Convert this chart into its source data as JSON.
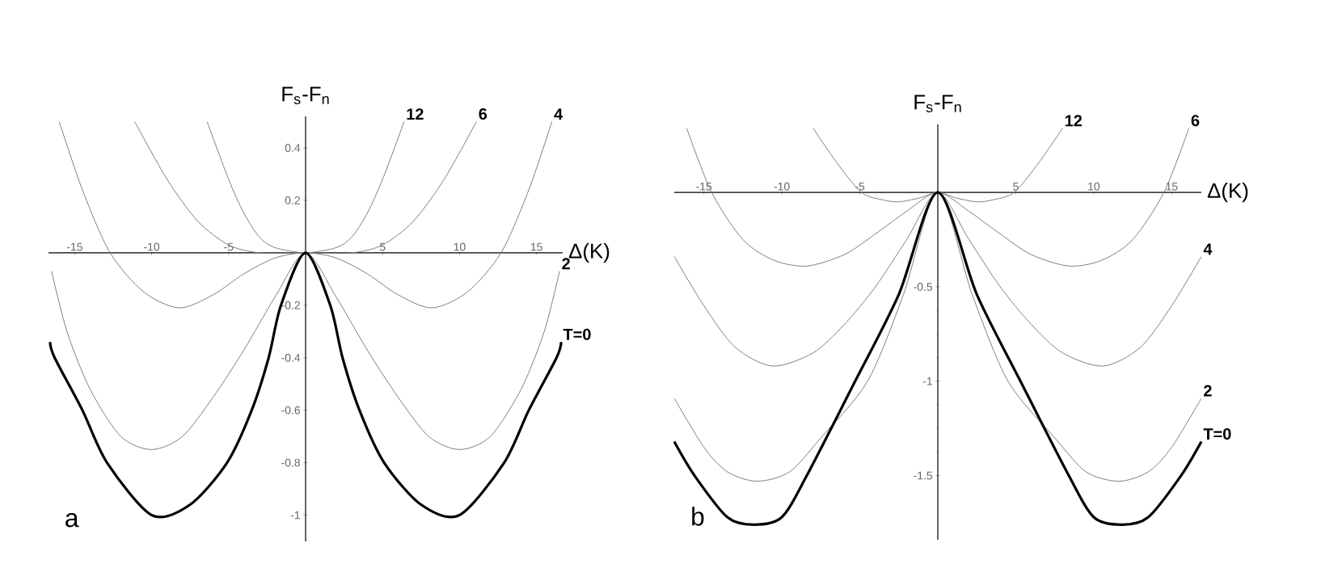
{
  "chart_data": [
    {
      "type": "line",
      "xlabel": "Δ(K)",
      "ylabel": "F$_{s}$-F$_{n}$",
      "annotations": [
        "a"
      ],
      "xlim": [
        -16.7,
        16.7
      ],
      "ylim": [
        -1.1,
        0.52
      ],
      "xticks": [
        -15,
        -10,
        -5,
        5,
        10,
        15
      ],
      "yticks": [
        0.4,
        0.2,
        -0.2,
        -0.4,
        -0.6,
        -0.8,
        -1
      ],
      "legend": false,
      "series": [
        {
          "name": "12",
          "color": "#808080",
          "x": [
            -6.4,
            -5,
            -4,
            -3,
            -2,
            0,
            2,
            3,
            4,
            5,
            6.4
          ],
          "values": [
            0.5,
            0.28,
            0.15,
            0.06,
            0.02,
            0,
            0.02,
            0.06,
            0.15,
            0.28,
            0.5
          ]
        },
        {
          "name": "6",
          "color": "#808080",
          "x": [
            -11.1,
            -9,
            -7,
            -5,
            -3,
            0,
            3,
            5,
            7,
            9,
            11.1
          ],
          "values": [
            0.5,
            0.28,
            0.12,
            0.03,
            0,
            0,
            0,
            0.03,
            0.12,
            0.28,
            0.5
          ]
        },
        {
          "name": "4",
          "color": "#808080",
          "x": [
            -16,
            -14.5,
            -12.7,
            -10.5,
            -8.2,
            -6,
            -4,
            -2,
            0,
            2,
            4,
            6,
            8.2,
            10.5,
            12.7,
            14.5,
            16
          ],
          "values": [
            0.5,
            0.24,
            0,
            -0.15,
            -0.21,
            -0.16,
            -0.08,
            -0.02,
            0,
            -0.02,
            -0.08,
            -0.16,
            -0.21,
            -0.15,
            0,
            0.24,
            0.5
          ]
        },
        {
          "name": "2",
          "color": "#808080",
          "x": [
            -16.5,
            -15.5,
            -14,
            -12,
            -10,
            -8,
            -6,
            -4,
            -2,
            0,
            2,
            4,
            6,
            8,
            10,
            12,
            14,
            15.5,
            16.5
          ],
          "values": [
            -0.07,
            -0.3,
            -0.52,
            -0.7,
            -0.75,
            -0.7,
            -0.55,
            -0.37,
            -0.17,
            0,
            -0.17,
            -0.37,
            -0.55,
            -0.7,
            -0.75,
            -0.7,
            -0.52,
            -0.3,
            -0.07
          ]
        },
        {
          "name": "T=0",
          "color": "#000000",
          "x": [
            -16.6,
            -16.3,
            -14.5,
            -12.9,
            -10,
            -7.5,
            -5.1,
            -3.5,
            -2.4,
            -1.6,
            0,
            1.6,
            2.4,
            3.5,
            5.1,
            7.5,
            10,
            12.9,
            14.5,
            16.3,
            16.6
          ],
          "values": [
            -0.34,
            -0.4,
            -0.6,
            -0.8,
            -1,
            -0.96,
            -0.8,
            -0.6,
            -0.4,
            -0.2,
            0,
            -0.2,
            -0.4,
            -0.6,
            -0.8,
            -0.96,
            -1,
            -0.8,
            -0.6,
            -0.4,
            -0.34
          ]
        }
      ]
    },
    {
      "type": "line",
      "xlabel": "Δ(K)",
      "ylabel": "F$_{s}$-F$_{n}$",
      "annotations": [
        "b"
      ],
      "xlim": [
        -16.9,
        16.9
      ],
      "ylim": [
        -1.84,
        0.36
      ],
      "xticks": [
        -15,
        -10,
        -5,
        5,
        10,
        15
      ],
      "yticks": [
        -0.5,
        -1,
        -1.5
      ],
      "legend": false,
      "series": [
        {
          "name": "12",
          "color": "#808080",
          "x": [
            -8,
            -6.5,
            -4.9,
            -3.5,
            -2.5,
            -1.2,
            0,
            1.2,
            2.5,
            3.5,
            4.9,
            6.5,
            8
          ],
          "values": [
            0.34,
            0.16,
            0,
            -0.04,
            -0.05,
            -0.03,
            0,
            -0.03,
            -0.05,
            -0.04,
            0,
            0.16,
            0.34
          ]
        },
        {
          "name": "6",
          "color": "#808080",
          "x": [
            -16.1,
            -14.5,
            -12.5,
            -10.5,
            -8.4,
            -6,
            -4,
            -2,
            0,
            2,
            4,
            6,
            8.4,
            10.5,
            12.5,
            14.5,
            16.1
          ],
          "values": [
            0.34,
            0,
            -0.25,
            -0.36,
            -0.39,
            -0.33,
            -0.22,
            -0.1,
            0,
            -0.1,
            -0.22,
            -0.33,
            -0.39,
            -0.36,
            -0.25,
            0,
            0.34
          ]
        },
        {
          "name": "4",
          "color": "#808080",
          "x": [
            -16.9,
            -15,
            -13,
            -10.6,
            -8,
            -6,
            -4,
            -2,
            0,
            2,
            4,
            6,
            8,
            10.6,
            13,
            15,
            16.9
          ],
          "values": [
            -0.34,
            -0.6,
            -0.82,
            -0.92,
            -0.85,
            -0.7,
            -0.5,
            -0.25,
            0,
            -0.25,
            -0.5,
            -0.7,
            -0.85,
            -0.92,
            -0.82,
            -0.6,
            -0.34
          ]
        },
        {
          "name": "2",
          "color": "#808080",
          "x": [
            -16.9,
            -15,
            -13.5,
            -11.6,
            -9.5,
            -7.5,
            -4.5,
            -2.2,
            0,
            2.2,
            4.5,
            7.5,
            9.5,
            11.6,
            13.5,
            15,
            16.9
          ],
          "values": [
            -1.09,
            -1.35,
            -1.48,
            -1.53,
            -1.48,
            -1.3,
            -1,
            -0.54,
            0,
            -0.54,
            -1,
            -1.3,
            -1.48,
            -1.53,
            -1.48,
            -1.35,
            -1.09
          ]
        },
        {
          "name": "T=0",
          "color": "#000000",
          "x": [
            -16.9,
            -15.6,
            -13.5,
            -11.8,
            -10,
            -8.4,
            -5.3,
            -2.5,
            0,
            2.5,
            5.3,
            8.4,
            10,
            11.8,
            13.5,
            15.6,
            16.9
          ],
          "values": [
            -1.32,
            -1.5,
            -1.72,
            -1.76,
            -1.72,
            -1.5,
            -1,
            -0.54,
            0,
            -0.54,
            -1,
            -1.5,
            -1.72,
            -1.76,
            -1.72,
            -1.5,
            -1.32
          ]
        }
      ]
    }
  ]
}
